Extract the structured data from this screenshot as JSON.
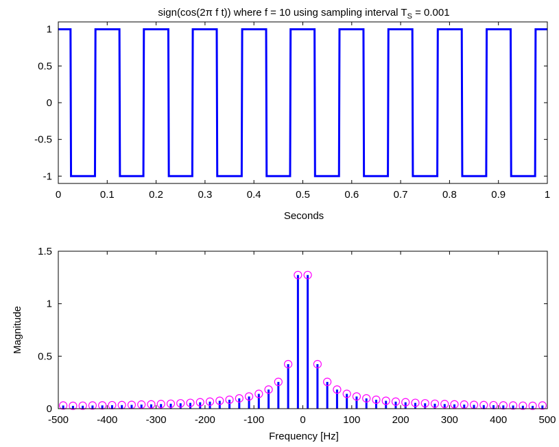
{
  "chart_data": [
    {
      "type": "line",
      "title": "sign(cos(2π f t))  where f  =  10 using sampling interval T",
      "title_subscript": "S",
      "title_suffix": " = 0.001",
      "xlabel": "Seconds",
      "ylabel": "",
      "xlim": [
        0,
        1
      ],
      "ylim": [
        -1.1,
        1.1
      ],
      "xticks": [
        0,
        0.1,
        0.2,
        0.3,
        0.4,
        0.5,
        0.6,
        0.7,
        0.8,
        0.9,
        1
      ],
      "xtick_labels": [
        "0",
        "0.1",
        "0.2",
        "0.3",
        "0.4",
        "0.5",
        "0.6",
        "0.7",
        "0.8",
        "0.9",
        "1"
      ],
      "yticks": [
        -1,
        -0.5,
        0,
        0.5,
        1
      ],
      "ytick_labels": [
        "-1",
        "-0.5",
        "0",
        "0.5",
        "1"
      ],
      "frequency_hz": 10,
      "sampling_interval": 0.001,
      "series_color": "#0000ff",
      "grid": false
    },
    {
      "type": "stem",
      "title": "",
      "xlabel": "Frequency [Hz]",
      "ylabel": "Magnitude",
      "xlim": [
        -500,
        500
      ],
      "ylim": [
        0,
        1.5
      ],
      "xticks": [
        -500,
        -400,
        -300,
        -200,
        -100,
        0,
        100,
        200,
        300,
        400,
        500
      ],
      "xtick_labels": [
        "-500",
        "-400",
        "-300",
        "-200",
        "-100",
        "0",
        "100",
        "200",
        "300",
        "400",
        "500"
      ],
      "yticks": [
        0,
        0.5,
        1,
        1.5
      ],
      "ytick_labels": [
        "0",
        "0.5",
        "1",
        "1.5"
      ],
      "x": [
        -490,
        -470,
        -450,
        -430,
        -410,
        -390,
        -370,
        -350,
        -330,
        -310,
        -290,
        -270,
        -250,
        -230,
        -210,
        -190,
        -170,
        -150,
        -130,
        -110,
        -90,
        -70,
        -50,
        -30,
        -10,
        10,
        30,
        50,
        70,
        90,
        110,
        130,
        150,
        170,
        190,
        210,
        230,
        250,
        270,
        290,
        310,
        330,
        350,
        370,
        390,
        410,
        430,
        450,
        470,
        490
      ],
      "values": [
        0.03,
        0.027,
        0.028,
        0.03,
        0.031,
        0.033,
        0.034,
        0.036,
        0.039,
        0.041,
        0.044,
        0.047,
        0.051,
        0.055,
        0.061,
        0.067,
        0.075,
        0.085,
        0.098,
        0.116,
        0.141,
        0.182,
        0.255,
        0.424,
        1.273,
        1.273,
        0.424,
        0.255,
        0.182,
        0.141,
        0.116,
        0.098,
        0.085,
        0.075,
        0.067,
        0.061,
        0.055,
        0.051,
        0.047,
        0.044,
        0.041,
        0.039,
        0.036,
        0.034,
        0.033,
        0.031,
        0.03,
        0.028,
        0.027,
        0.03
      ],
      "stem_color": "#0000ff",
      "marker_color": "#ff00ff",
      "grid": false
    }
  ]
}
